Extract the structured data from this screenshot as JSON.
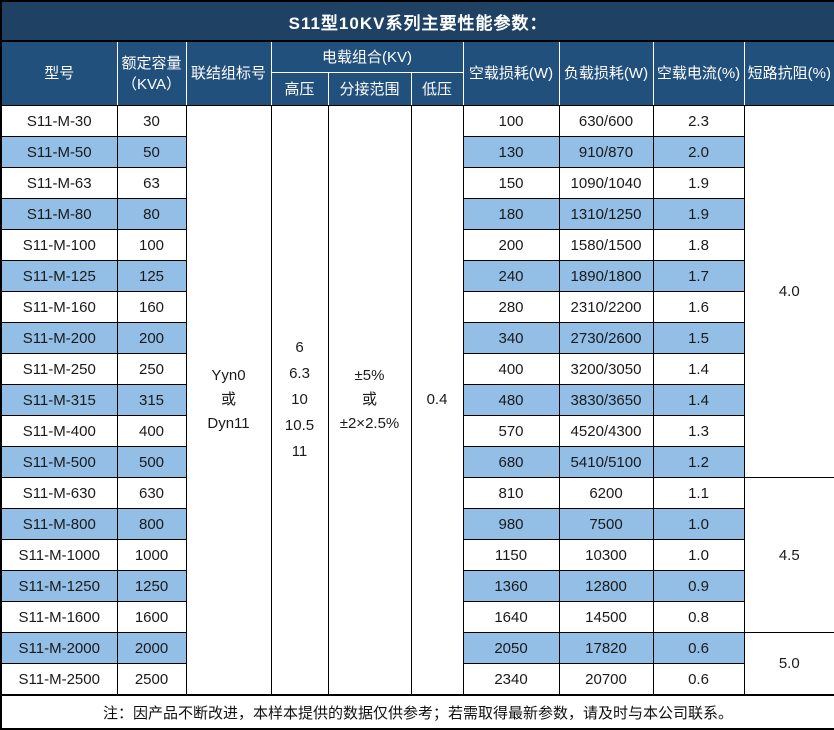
{
  "title": "S11型10KV系列主要性能参数：",
  "columns": {
    "model": "型号",
    "capacity": "额定容量\n（KVA）",
    "connection": "联结组标号",
    "voltage_group": "电载组合(KV)",
    "hv": "高压",
    "tap_range": "分接范围",
    "lv": "低压",
    "no_load_loss": "空载损耗(W)",
    "load_loss": "负载损耗(W)",
    "no_load_current": "空载电流(%)",
    "short_circuit_impedance": "短路抗阻(%)"
  },
  "merged": {
    "connection": "Yyn0\n或\nDyn11",
    "hv": "6\n6.3\n10\n10.5\n11",
    "tap_range": "±5%\n或\n±2×2.5%",
    "lv": "0.4"
  },
  "rows": [
    {
      "model": "S11-M-30",
      "capacity": "30",
      "no_load_loss": "100",
      "load_loss": "630/600",
      "no_load_current": "2.3"
    },
    {
      "model": "S11-M-50",
      "capacity": "50",
      "no_load_loss": "130",
      "load_loss": "910/870",
      "no_load_current": "2.0"
    },
    {
      "model": "S11-M-63",
      "capacity": "63",
      "no_load_loss": "150",
      "load_loss": "1090/1040",
      "no_load_current": "1.9"
    },
    {
      "model": "S11-M-80",
      "capacity": "80",
      "no_load_loss": "180",
      "load_loss": "1310/1250",
      "no_load_current": "1.9"
    },
    {
      "model": "S11-M-100",
      "capacity": "100",
      "no_load_loss": "200",
      "load_loss": "1580/1500",
      "no_load_current": "1.8"
    },
    {
      "model": "S11-M-125",
      "capacity": "125",
      "no_load_loss": "240",
      "load_loss": "1890/1800",
      "no_load_current": "1.7"
    },
    {
      "model": "S11-M-160",
      "capacity": "160",
      "no_load_loss": "280",
      "load_loss": "2310/2200",
      "no_load_current": "1.6"
    },
    {
      "model": "S11-M-200",
      "capacity": "200",
      "no_load_loss": "340",
      "load_loss": "2730/2600",
      "no_load_current": "1.5"
    },
    {
      "model": "S11-M-250",
      "capacity": "250",
      "no_load_loss": "400",
      "load_loss": "3200/3050",
      "no_load_current": "1.4"
    },
    {
      "model": "S11-M-315",
      "capacity": "315",
      "no_load_loss": "480",
      "load_loss": "3830/3650",
      "no_load_current": "1.4"
    },
    {
      "model": "S11-M-400",
      "capacity": "400",
      "no_load_loss": "570",
      "load_loss": "4520/4300",
      "no_load_current": "1.3"
    },
    {
      "model": "S11-M-500",
      "capacity": "500",
      "no_load_loss": "680",
      "load_loss": "5410/5100",
      "no_load_current": "1.2"
    },
    {
      "model": "S11-M-630",
      "capacity": "630",
      "no_load_loss": "810",
      "load_loss": "6200",
      "no_load_current": "1.1"
    },
    {
      "model": "S11-M-800",
      "capacity": "800",
      "no_load_loss": "980",
      "load_loss": "7500",
      "no_load_current": "1.0"
    },
    {
      "model": "S11-M-1000",
      "capacity": "1000",
      "no_load_loss": "1150",
      "load_loss": "10300",
      "no_load_current": "1.0"
    },
    {
      "model": "S11-M-1250",
      "capacity": "1250",
      "no_load_loss": "1360",
      "load_loss": "12800",
      "no_load_current": "0.9"
    },
    {
      "model": "S11-M-1600",
      "capacity": "1600",
      "no_load_loss": "1640",
      "load_loss": "14500",
      "no_load_current": "0.8"
    },
    {
      "model": "S11-M-2000",
      "capacity": "2000",
      "no_load_loss": "2050",
      "load_loss": "17820",
      "no_load_current": "0.6"
    },
    {
      "model": "S11-M-2500",
      "capacity": "2500",
      "no_load_loss": "2340",
      "load_loss": "20700",
      "no_load_current": "0.6"
    }
  ],
  "impedance_groups": [
    {
      "value": "4.0",
      "span": 12
    },
    {
      "value": "4.5",
      "span": 5
    },
    {
      "value": "5.0",
      "span": 2
    }
  ],
  "footer_note": "注：因产品不断改进，本样本提供的数据仅供参考；若需取得最新参数，请及时与本公司联系。",
  "colors": {
    "title_bg": "#1F4164",
    "header_bg": "#22507C",
    "stripe_bg": "#93BEE6",
    "border": "#000000",
    "header_text": "#FFFFFF"
  }
}
